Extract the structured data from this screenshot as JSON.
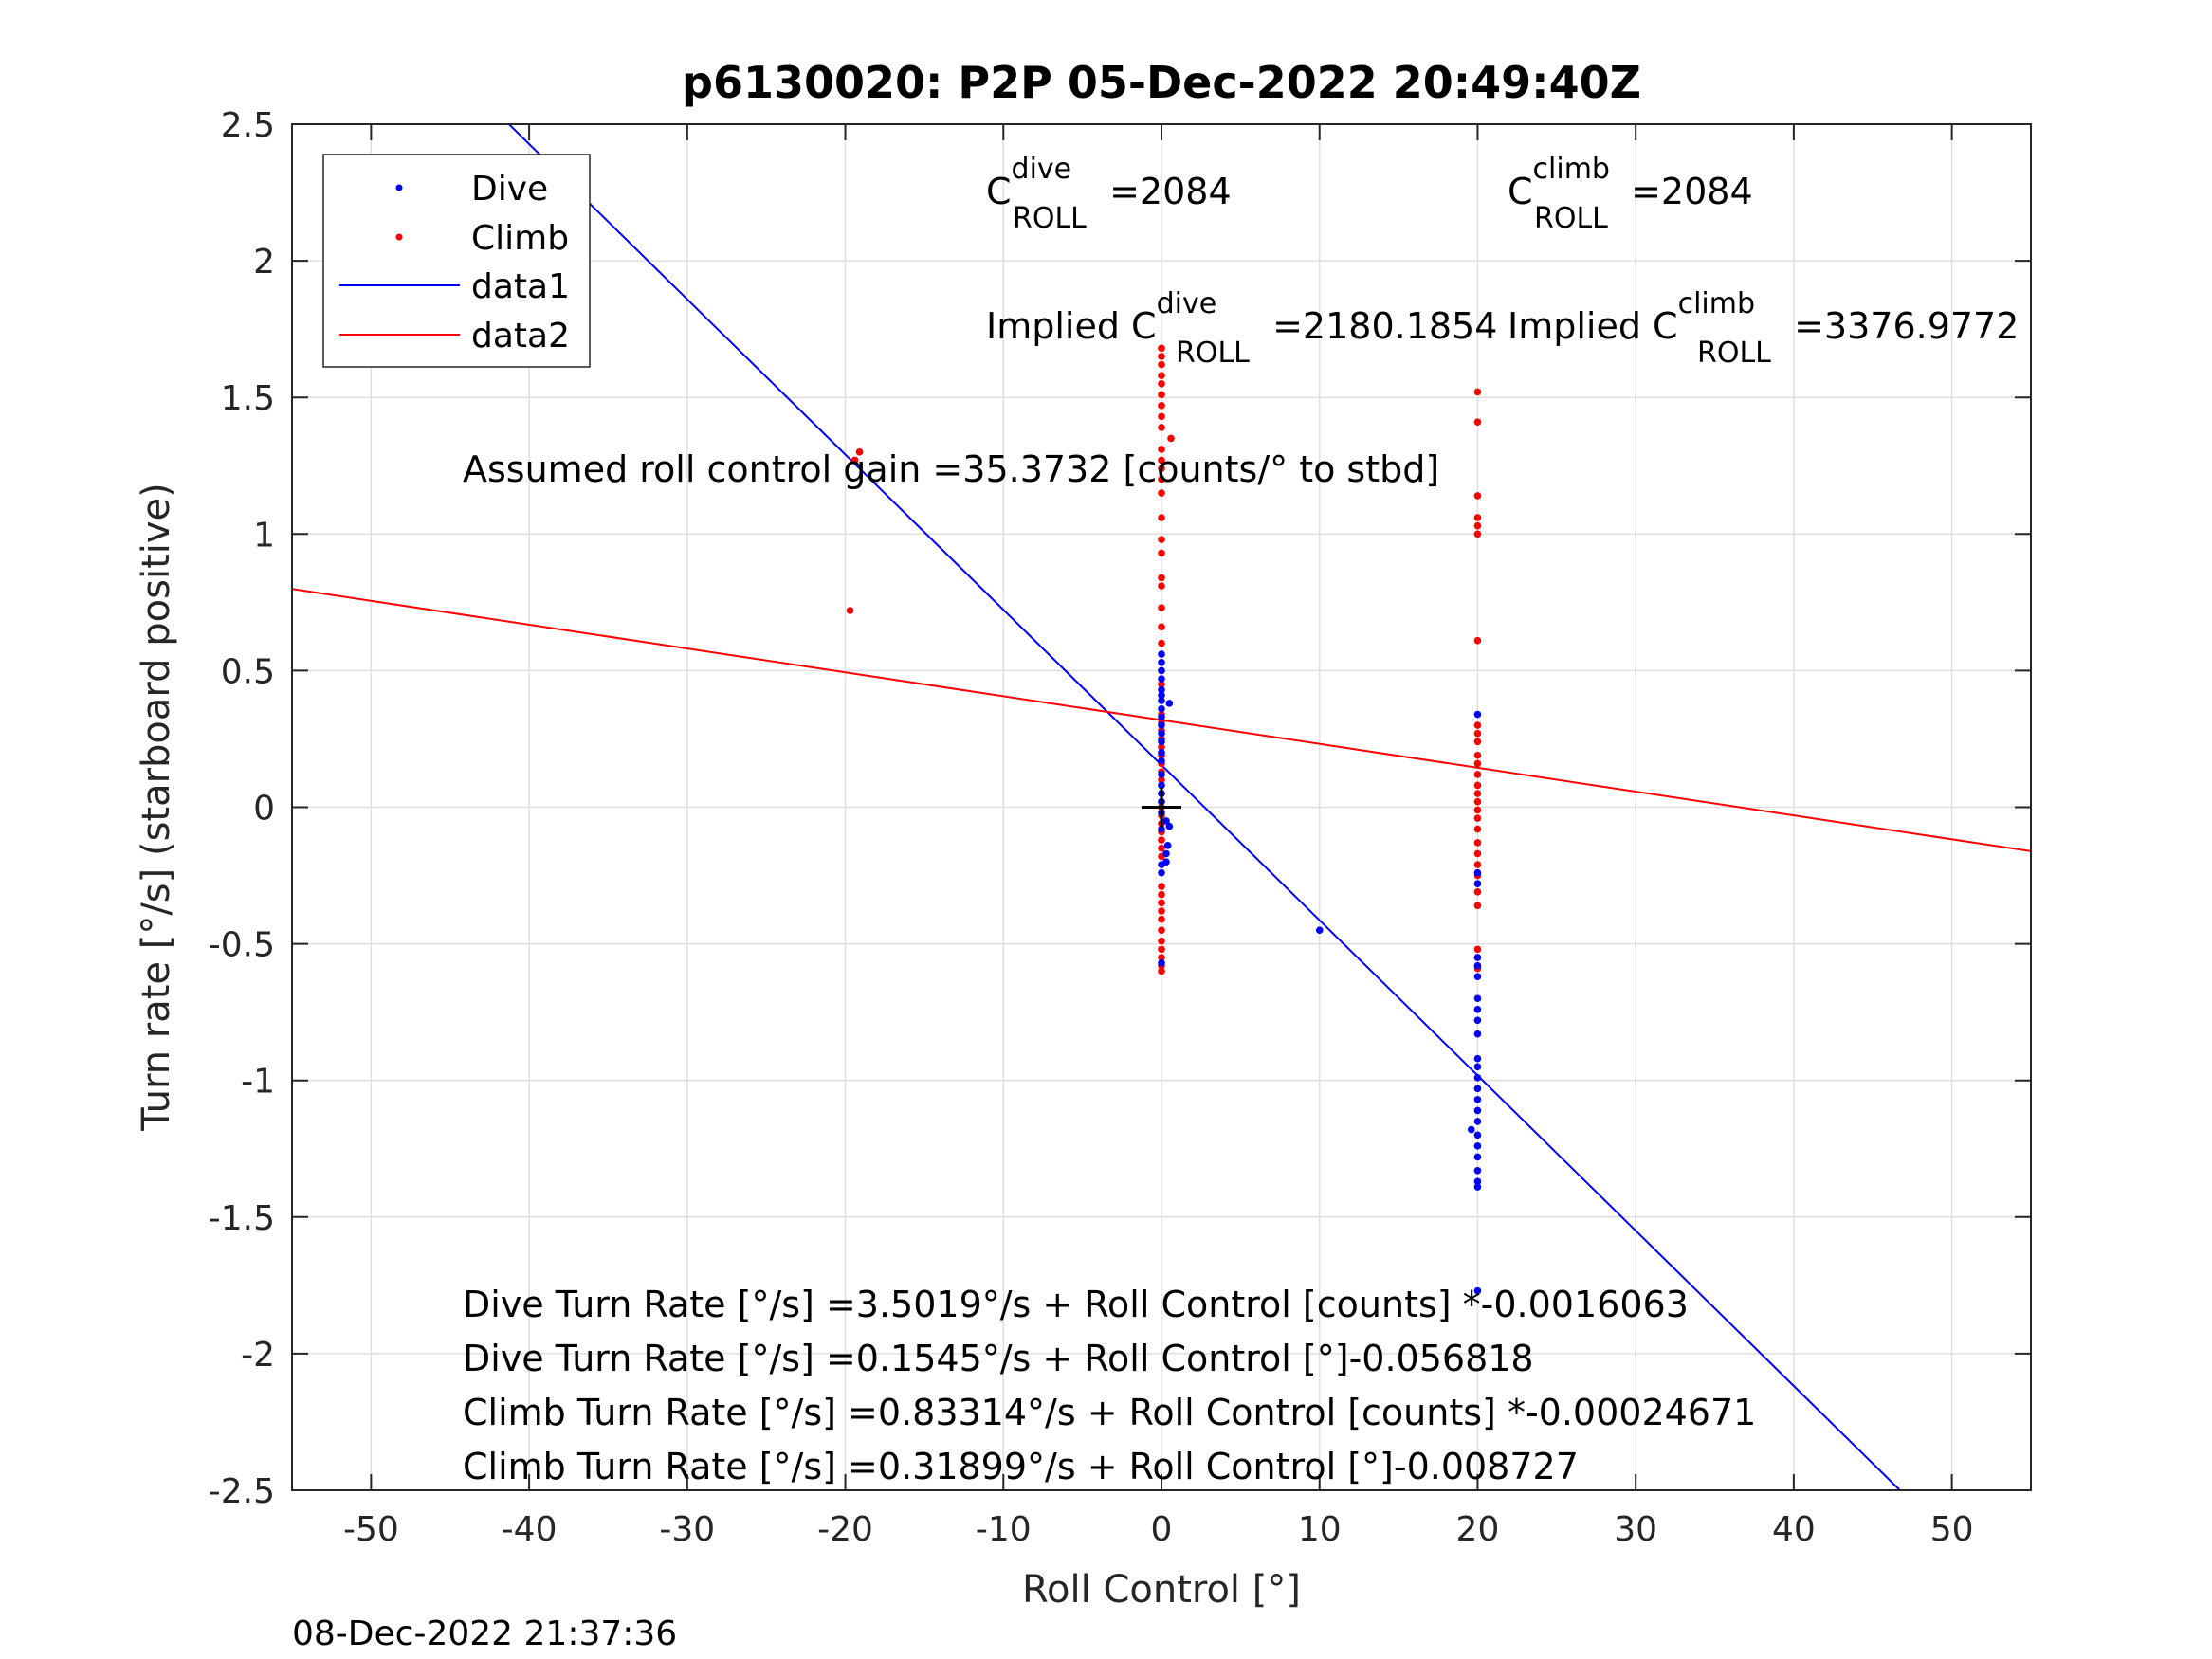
{
  "chart_data": {
    "type": "scatter",
    "title": "p6130020: P2P 05-Dec-2022 20:49:40Z",
    "xlabel": "Roll Control [°]",
    "ylabel": "Turn rate [°/s] (starboard positive)",
    "xlim": [
      -55,
      55
    ],
    "ylim": [
      -2.5,
      2.5
    ],
    "xticks": [
      -50,
      -40,
      -30,
      -20,
      -10,
      0,
      10,
      20,
      30,
      40,
      50
    ],
    "xtick_labels": [
      "-50",
      "-40",
      "-30",
      "-20",
      "-10",
      "0",
      "10",
      "20",
      "30",
      "40",
      "50"
    ],
    "yticks": [
      2.5,
      2,
      1.5,
      1,
      0.5,
      0,
      -0.5,
      -1,
      -1.5,
      -2,
      -2.5
    ],
    "ytick_labels": [
      "2.5",
      "2",
      "1.5",
      "1",
      "0.5",
      "0",
      "-0.5",
      "-1",
      "-1.5",
      "-2",
      "-2.5"
    ],
    "grid": true,
    "legend_position": "top-left",
    "series": [
      {
        "name": "Dive",
        "kind": "points",
        "color": "#0000ff",
        "points": [
          [
            0,
            0.56
          ],
          [
            0,
            0.53
          ],
          [
            0,
            0.5
          ],
          [
            0,
            0.47
          ],
          [
            0,
            0.43
          ],
          [
            0,
            0.41
          ],
          [
            0,
            0.39
          ],
          [
            0.5,
            0.38
          ],
          [
            0,
            0.36
          ],
          [
            0,
            0.33
          ],
          [
            0,
            0.3
          ],
          [
            0,
            0.27
          ],
          [
            0,
            0.24
          ],
          [
            0,
            0.2
          ],
          [
            0,
            0.17
          ],
          [
            0,
            0.12
          ],
          [
            0,
            0.08
          ],
          [
            0,
            0.05
          ],
          [
            0,
            0.02
          ],
          [
            0,
            -0.02
          ],
          [
            0.3,
            -0.05
          ],
          [
            0,
            -0.08
          ],
          [
            0.5,
            -0.07
          ],
          [
            0.4,
            -0.14
          ],
          [
            0.3,
            -0.17
          ],
          [
            0.3,
            -0.2
          ],
          [
            0,
            -0.21
          ],
          [
            0,
            -0.24
          ],
          [
            0,
            -0.57
          ],
          [
            10,
            -0.45
          ],
          [
            19.6,
            -1.18
          ],
          [
            20,
            0.34
          ],
          [
            20,
            -0.24
          ],
          [
            20,
            -0.28
          ],
          [
            20,
            -0.55
          ],
          [
            20,
            -0.58
          ],
          [
            20,
            -0.62
          ],
          [
            20,
            -0.7
          ],
          [
            20,
            -0.74
          ],
          [
            20,
            -0.78
          ],
          [
            20,
            -0.83
          ],
          [
            20,
            -0.92
          ],
          [
            20,
            -0.95
          ],
          [
            20,
            -0.99
          ],
          [
            20,
            -1.03
          ],
          [
            20,
            -1.07
          ],
          [
            20,
            -1.11
          ],
          [
            20,
            -1.15
          ],
          [
            20,
            -1.2
          ],
          [
            20,
            -1.24
          ],
          [
            20,
            -1.28
          ],
          [
            20,
            -1.33
          ],
          [
            20,
            -1.37
          ],
          [
            20,
            -1.39
          ],
          [
            20,
            -1.77
          ]
        ]
      },
      {
        "name": "Climb",
        "kind": "points",
        "color": "#ff0000",
        "points": [
          [
            -19.7,
            0.72
          ],
          [
            -19.1,
            1.3
          ],
          [
            -19.4,
            1.27
          ],
          [
            0,
            1.68
          ],
          [
            0,
            1.65
          ],
          [
            0,
            1.62
          ],
          [
            0,
            1.58
          ],
          [
            0,
            1.55
          ],
          [
            0,
            1.51
          ],
          [
            0,
            1.47
          ],
          [
            0,
            1.43
          ],
          [
            0,
            1.39
          ],
          [
            0.6,
            1.35
          ],
          [
            0,
            1.31
          ],
          [
            0,
            1.27
          ],
          [
            0,
            1.24
          ],
          [
            0,
            1.2
          ],
          [
            0,
            1.15
          ],
          [
            0,
            1.06
          ],
          [
            0,
            0.98
          ],
          [
            0,
            0.93
          ],
          [
            0,
            0.84
          ],
          [
            0,
            0.81
          ],
          [
            0,
            0.73
          ],
          [
            0,
            0.66
          ],
          [
            0,
            0.6
          ],
          [
            0,
            0.5
          ],
          [
            0,
            0.45
          ],
          [
            0,
            0.34
          ],
          [
            0,
            0.31
          ],
          [
            0,
            0.28
          ],
          [
            0,
            0.25
          ],
          [
            0,
            0.22
          ],
          [
            0,
            0.19
          ],
          [
            0,
            0.16
          ],
          [
            0,
            0.13
          ],
          [
            0,
            0.1
          ],
          [
            0,
            0.08
          ],
          [
            0,
            0.05
          ],
          [
            0,
            0.02
          ],
          [
            0,
            0.0
          ],
          [
            0,
            -0.03
          ],
          [
            0,
            -0.06
          ],
          [
            0,
            -0.09
          ],
          [
            0,
            -0.12
          ],
          [
            0,
            -0.15
          ],
          [
            0,
            -0.18
          ],
          [
            0,
            -0.29
          ],
          [
            0,
            -0.32
          ],
          [
            0,
            -0.35
          ],
          [
            0,
            -0.38
          ],
          [
            0,
            -0.41
          ],
          [
            0,
            -0.45
          ],
          [
            0,
            -0.49
          ],
          [
            0,
            -0.52
          ],
          [
            0,
            -0.55
          ],
          [
            0,
            -0.58
          ],
          [
            0,
            -0.6
          ],
          [
            20,
            1.52
          ],
          [
            20,
            1.41
          ],
          [
            20,
            1.14
          ],
          [
            20,
            1.06
          ],
          [
            20,
            1.03
          ],
          [
            20,
            1.0
          ],
          [
            20,
            0.61
          ],
          [
            20,
            0.3
          ],
          [
            20,
            0.27
          ],
          [
            20,
            0.24
          ],
          [
            20,
            0.19
          ],
          [
            20,
            0.16
          ],
          [
            20,
            0.12
          ],
          [
            20,
            0.08
          ],
          [
            20,
            0.05
          ],
          [
            20,
            0.02
          ],
          [
            20,
            -0.01
          ],
          [
            20,
            -0.04
          ],
          [
            20,
            -0.08
          ],
          [
            20,
            -0.13
          ],
          [
            20,
            -0.17
          ],
          [
            20,
            -0.21
          ],
          [
            20,
            -0.25
          ],
          [
            20,
            -0.31
          ],
          [
            20,
            -0.36
          ],
          [
            20,
            -0.52
          ],
          [
            20,
            -0.55
          ],
          [
            20,
            -0.59
          ]
        ]
      },
      {
        "name": "data1",
        "kind": "line",
        "color": "#0000ff",
        "slope": -0.056818,
        "intercept": 0.1545,
        "x_range": [
          -55,
          55
        ]
      },
      {
        "name": "data2",
        "kind": "line",
        "color": "#ff0000",
        "slope": -0.008727,
        "intercept": 0.31899,
        "x_range": [
          -55,
          55
        ]
      }
    ],
    "origin_marker": {
      "x": 0,
      "y": 0,
      "symbol": "+",
      "color": "#000000"
    },
    "annotations": {
      "c_dive": {
        "base": "C",
        "sup": "dive",
        "sub": "ROLL",
        "value": " =2084"
      },
      "c_climb": {
        "base": "C",
        "sup": "climb",
        "sub": "ROLL",
        "value": " =2084"
      },
      "implied_dive": {
        "prefix": "Implied C",
        "sup": "dive",
        "sub": "ROLL",
        "value": " =2180.1854"
      },
      "implied_climb": {
        "prefix": "Implied C",
        "sup": "climb",
        "sub": "ROLL",
        "value": " =3376.9772"
      },
      "gain": "Assumed roll control gain =35.3732 [counts/° to stbd]",
      "eq1": "Dive Turn Rate [°/s] =3.5019°/s + Roll Control [counts] *-0.0016063",
      "eq2": "Dive Turn Rate [°/s] =0.1545°/s + Roll Control [°]-0.056818",
      "eq3": "Climb Turn Rate [°/s] =0.83314°/s + Roll Control [counts] *-0.00024671",
      "eq4": "Climb Turn Rate [°/s] =0.31899°/s + Roll Control [°]-0.008727"
    },
    "timestamp": "08-Dec-2022 21:37:36"
  }
}
